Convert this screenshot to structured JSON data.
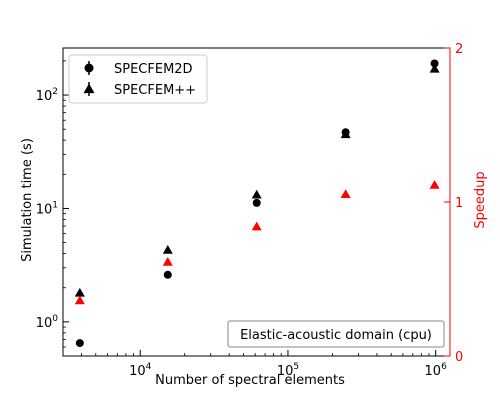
{
  "chart_data": {
    "type": "scatter",
    "xlabel": "Number of spectral elements",
    "ylabel_left": "Simulation time (s)",
    "ylabel_right": "Speedup",
    "x_scale": "log",
    "y_left_scale": "log",
    "y_right_scale": "linear",
    "xlim": [
      3000,
      1250000
    ],
    "ylim_left": [
      0.5,
      260
    ],
    "ylim_right": [
      0,
      2
    ],
    "x_ticks": [
      {
        "value": 10000,
        "base": "10",
        "exp": "4"
      },
      {
        "value": 100000,
        "base": "10",
        "exp": "5"
      },
      {
        "value": 1000000,
        "base": "10",
        "exp": "6"
      }
    ],
    "y_left_ticks": [
      {
        "value": 1,
        "base": "10",
        "exp": "0"
      },
      {
        "value": 10,
        "base": "10",
        "exp": "1"
      },
      {
        "value": 100,
        "base": "10",
        "exp": "2"
      }
    ],
    "y_right_ticks": [
      {
        "value": 0,
        "label": "0"
      },
      {
        "value": 1,
        "label": "1"
      },
      {
        "value": 2,
        "label": "2"
      }
    ],
    "x": [
      3900,
      15360,
      61440,
      245760,
      983040
    ],
    "series": [
      {
        "name": "SPECFEM2D",
        "marker": "circle",
        "color": "#000000",
        "axis": "left",
        "values": [
          0.65,
          2.6,
          11.2,
          47,
          190
        ]
      },
      {
        "name": "SPECFEM++",
        "marker": "triangle",
        "color": "#000000",
        "axis": "left",
        "values": [
          1.8,
          4.3,
          13.2,
          45,
          170
        ]
      },
      {
        "name": "",
        "marker": "triangle",
        "color": "#ff0000",
        "axis": "right",
        "values": [
          0.36,
          0.61,
          0.84,
          1.05,
          1.11
        ]
      }
    ],
    "annotation": "Elastic-acoustic domain (cpu)",
    "legend_position": "top-left",
    "grid": false
  }
}
